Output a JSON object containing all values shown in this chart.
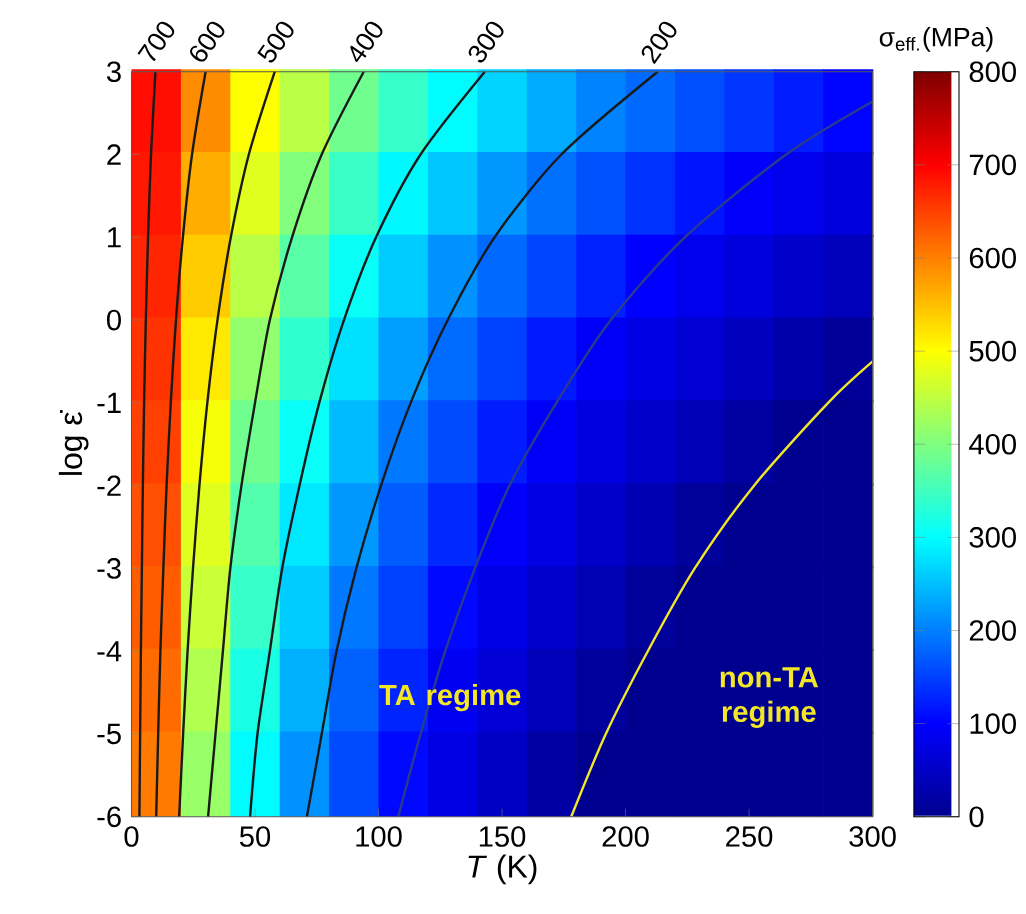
{
  "chart_data": {
    "type": "heatmap",
    "xlabel": "*T* (K)",
    "ylabel": "log ε̇",
    "clabel": "σ$_{eff.}$(MPa)",
    "xlim": [
      0,
      300
    ],
    "xticks": [
      0,
      50,
      100,
      150,
      200,
      250,
      300
    ],
    "ylim": [
      -6,
      3
    ],
    "yticks": [
      -6,
      -5,
      -4,
      -3,
      -2,
      -1,
      0,
      1,
      2,
      3
    ],
    "clim": [
      0,
      800
    ],
    "cticks": [
      0,
      100,
      200,
      300,
      400,
      500,
      600,
      700,
      800
    ],
    "x": [
      10,
      30,
      50,
      70,
      90,
      110,
      130,
      150,
      170,
      190,
      210,
      230,
      250,
      270,
      290
    ],
    "y": [
      2.5,
      1.5,
      0.5,
      -0.5,
      -1.5,
      -2.5,
      -3.5,
      -4.5,
      -5.5
    ],
    "cells": [
      [
        690,
        590,
        500,
        445,
        388,
        342,
        298,
        266,
        234,
        203,
        182,
        162,
        142,
        122,
        102
      ],
      [
        682,
        564,
        476,
        402,
        345,
        295,
        257,
        219,
        188,
        164,
        140,
        116,
        96,
        83,
        70
      ],
      [
        671,
        540,
        445,
        370,
        306,
        260,
        215,
        182,
        154,
        126,
        99,
        84,
        69,
        54,
        39
      ],
      [
        660,
        517,
        414,
        338,
        276,
        225,
        184,
        152,
        120,
        94,
        77,
        60,
        42,
        25,
        8
      ],
      [
        650,
        494,
        388,
        306,
        247,
        194,
        158,
        122,
        92,
        73,
        54,
        35,
        16,
        0,
        0
      ],
      [
        638,
        476,
        365,
        282,
        219,
        172,
        132,
        96,
        74,
        53,
        32,
        11,
        0,
        0,
        0
      ],
      [
        628,
        457,
        342,
        260,
        194,
        150,
        106,
        79,
        56,
        33,
        10,
        0,
        0,
        0,
        0
      ],
      [
        616,
        439,
        320,
        238,
        176,
        128,
        89,
        64,
        38,
        13,
        0,
        0,
        0,
        0,
        0
      ],
      [
        604,
        420,
        298,
        215,
        158,
        106,
        75,
        48,
        20,
        0,
        0,
        0,
        0,
        0,
        0
      ]
    ],
    "series": [
      {
        "type": "line",
        "name": "700",
        "color": "#1a1a1a",
        "x": [
          9.7,
          7.9,
          6.7,
          5.8,
          5.1,
          4.6,
          4.2,
          3.8,
          3.5,
          3.2
        ],
        "values": [
          3,
          2,
          1,
          0,
          -1,
          -2,
          -3,
          -4,
          -5,
          -6
        ]
      },
      {
        "type": "line",
        "name": "600",
        "color": "#1a1a1a",
        "x": [
          30,
          24.5,
          20.8,
          18,
          15.9,
          14.2,
          12.9,
          11.7,
          10.8,
          10
        ],
        "values": [
          3,
          2,
          1,
          0,
          -1,
          -2,
          -3,
          -4,
          -5,
          -6
        ]
      },
      {
        "type": "line",
        "name": "500",
        "color": "#1a1a1a",
        "x": [
          58,
          47.5,
          40.2,
          34.8,
          30.7,
          27.5,
          24.9,
          22.7,
          20.9,
          19.3
        ],
        "values": [
          3,
          2,
          1,
          0,
          -1,
          -2,
          -3,
          -4,
          -5,
          -6
        ]
      },
      {
        "type": "line",
        "name": "400",
        "color": "#1a1a1a",
        "x": [
          94,
          77,
          65,
          56,
          50,
          44.5,
          40,
          37,
          34,
          31
        ],
        "values": [
          3,
          2,
          1,
          0,
          -1,
          -2,
          -3,
          -4,
          -5,
          -6
        ]
      },
      {
        "type": "line",
        "name": "300",
        "color": "#1a1a1a",
        "x": [
          143,
          117,
          99,
          86,
          76,
          68,
          61,
          56,
          51,
          48
        ],
        "values": [
          3,
          2,
          1,
          0,
          -1,
          -2,
          -3,
          -4,
          -5,
          -6
        ]
      },
      {
        "type": "line",
        "name": "200",
        "color": "#1a1a1a",
        "x": [
          213,
          174,
          147,
          128,
          113,
          101,
          91,
          83,
          77,
          71
        ],
        "values": [
          3,
          2,
          1,
          0,
          -1,
          -2,
          -3,
          -4,
          -5,
          -6
        ]
      },
      {
        "type": "line",
        "color": "#2a3a8c",
        "x": [
          300,
          265,
          224,
          194,
          172,
          153,
          139,
          127,
          117,
          108
        ],
        "values": [
          2.64,
          2,
          1,
          0,
          -1,
          -2,
          -3,
          -4,
          -5,
          -6
        ]
      },
      {
        "type": "line",
        "color": "#f2e627",
        "x": [
          300,
          282,
          252,
          228,
          209,
          192,
          178
        ],
        "values": [
          -0.5,
          -1,
          -2,
          -3,
          -4,
          -5,
          -6
        ]
      }
    ],
    "annotations": [
      "TA regime",
      "non-TA regime"
    ]
  }
}
